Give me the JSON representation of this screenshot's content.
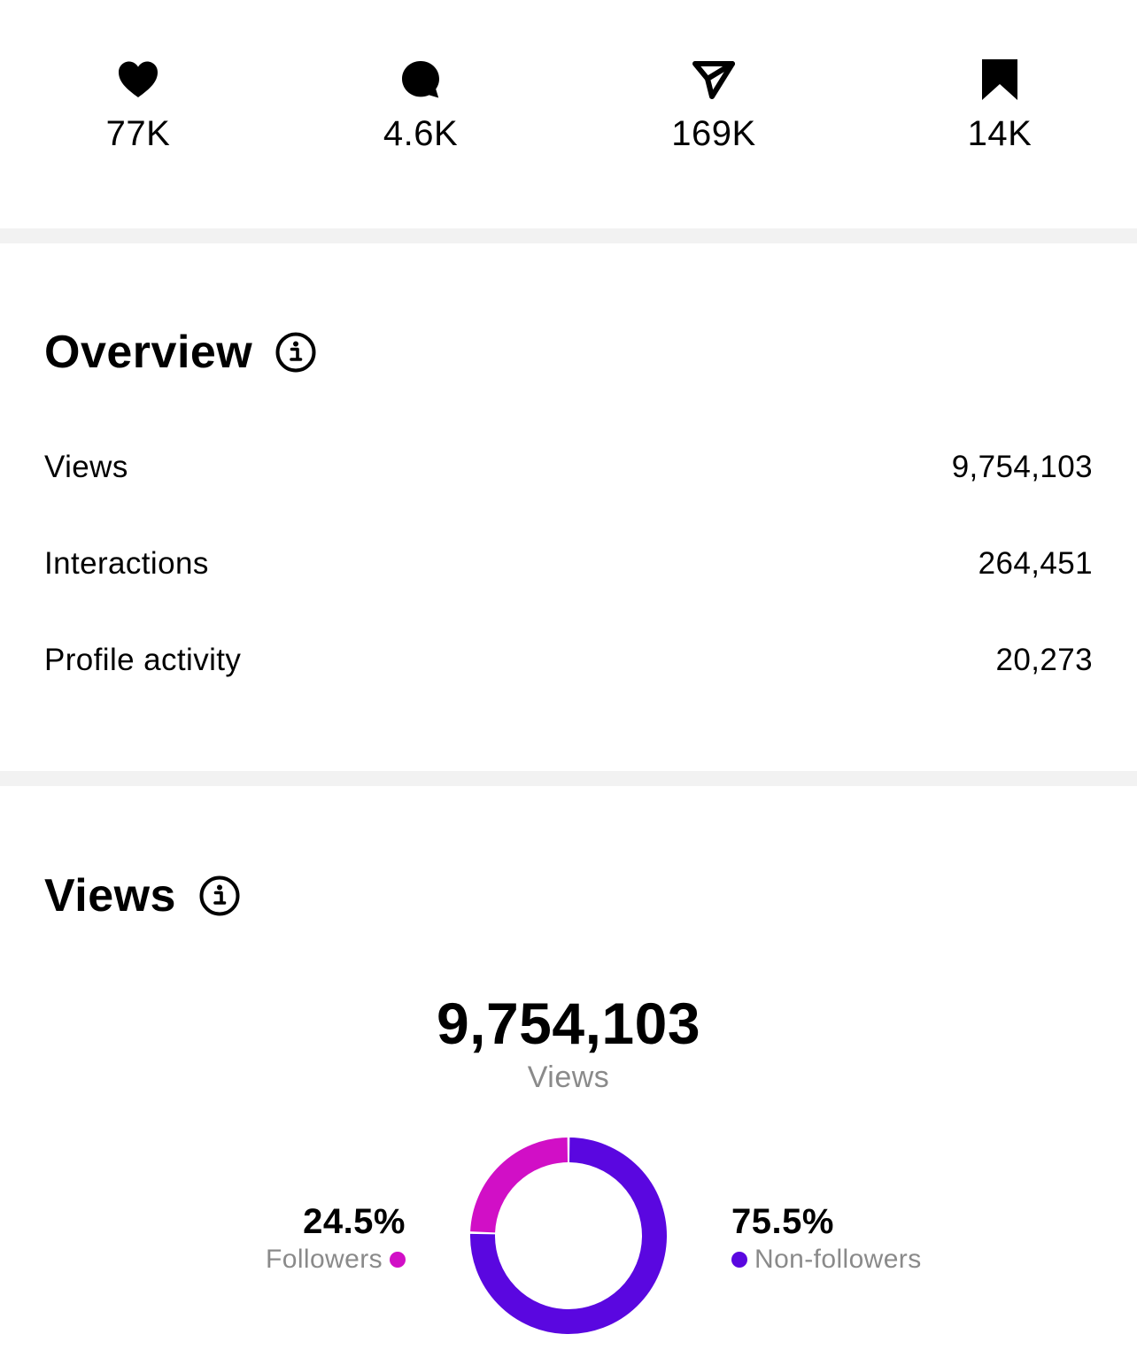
{
  "stats": {
    "likes": {
      "icon": "heart-icon",
      "value": "77K"
    },
    "comments": {
      "icon": "comment-icon",
      "value": "4.6K"
    },
    "shares": {
      "icon": "send-icon",
      "value": "169K"
    },
    "saves": {
      "icon": "bookmark-icon",
      "value": "14K"
    }
  },
  "overview": {
    "title": "Overview",
    "rows": [
      {
        "label": "Views",
        "value": "9,754,103"
      },
      {
        "label": "Interactions",
        "value": "264,451"
      },
      {
        "label": "Profile activity",
        "value": "20,273"
      }
    ]
  },
  "views": {
    "title": "Views",
    "total": "9,754,103",
    "total_label": "Views",
    "followers": {
      "pct_label": "24.5%",
      "label": "Followers",
      "fraction": 0.245,
      "color": "#d10fc6"
    },
    "non_followers": {
      "pct_label": "75.5%",
      "label": "Non-followers",
      "fraction": 0.755,
      "color": "#5a07e0"
    }
  },
  "colors": {
    "divider": "#f2f2f2",
    "secondary_text": "#8a8a8a"
  }
}
